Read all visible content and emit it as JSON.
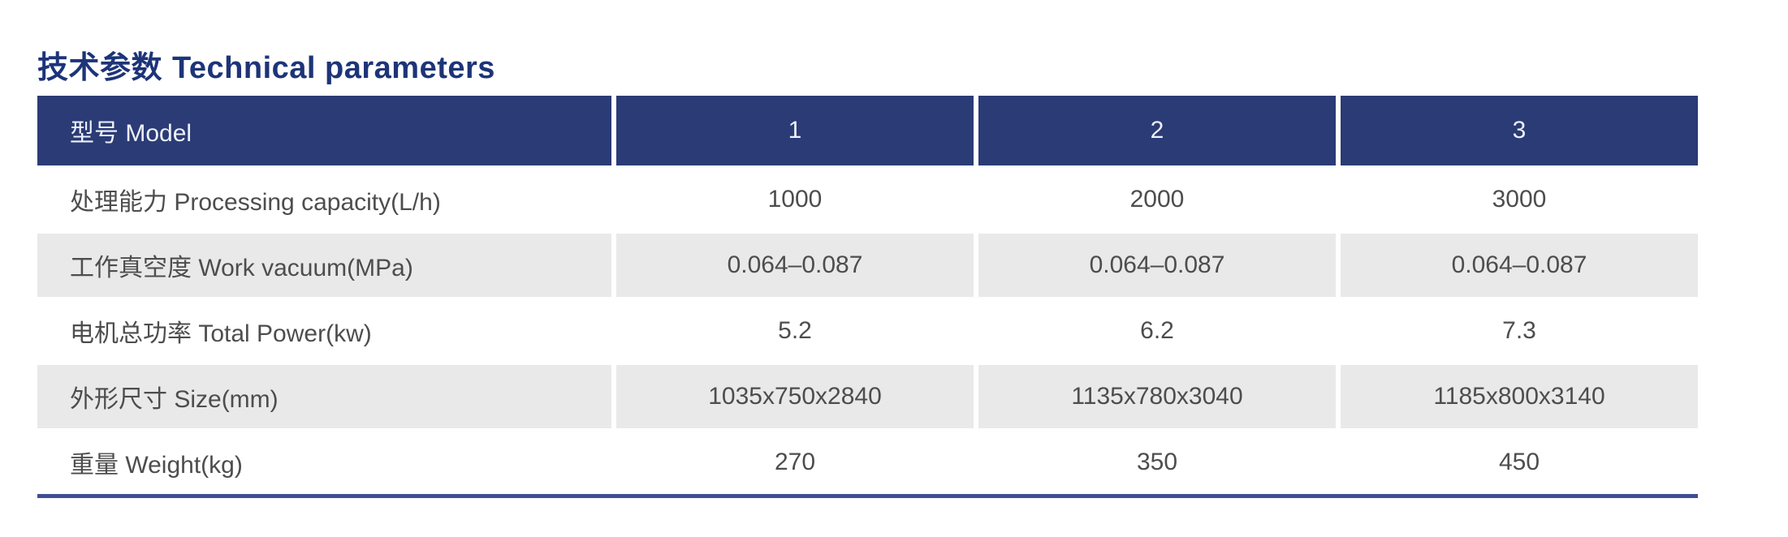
{
  "title": {
    "zh": "技术参数",
    "en": "Technical parameters"
  },
  "table": {
    "header": {
      "label": "型号 Model",
      "models": [
        "1",
        "2",
        "3"
      ]
    },
    "rows": [
      {
        "label": "处理能力 Processing capacity(L/h)",
        "values": [
          "1000",
          "2000",
          "3000"
        ]
      },
      {
        "label": "工作真空度 Work vacuum(MPa)",
        "values": [
          "0.064–0.087",
          "0.064–0.087",
          "0.064–0.087"
        ]
      },
      {
        "label": "电机总功率 Total Power(kw)",
        "values": [
          "5.2",
          "6.2",
          "7.3"
        ]
      },
      {
        "label": "外形尺寸 Size(mm)",
        "values": [
          "1035x750x2840",
          "1135x780x3040",
          "1185x800x3140"
        ]
      },
      {
        "label": "重量 Weight(kg)",
        "values": [
          "270",
          "350",
          "450"
        ]
      }
    ]
  },
  "colors": {
    "header_bg": "#2a3b76",
    "title_text": "#1d3478",
    "row_alt_bg": "#e9e9e9",
    "body_text": "#4d4d4d",
    "bottom_rule": "#3e4f91"
  }
}
